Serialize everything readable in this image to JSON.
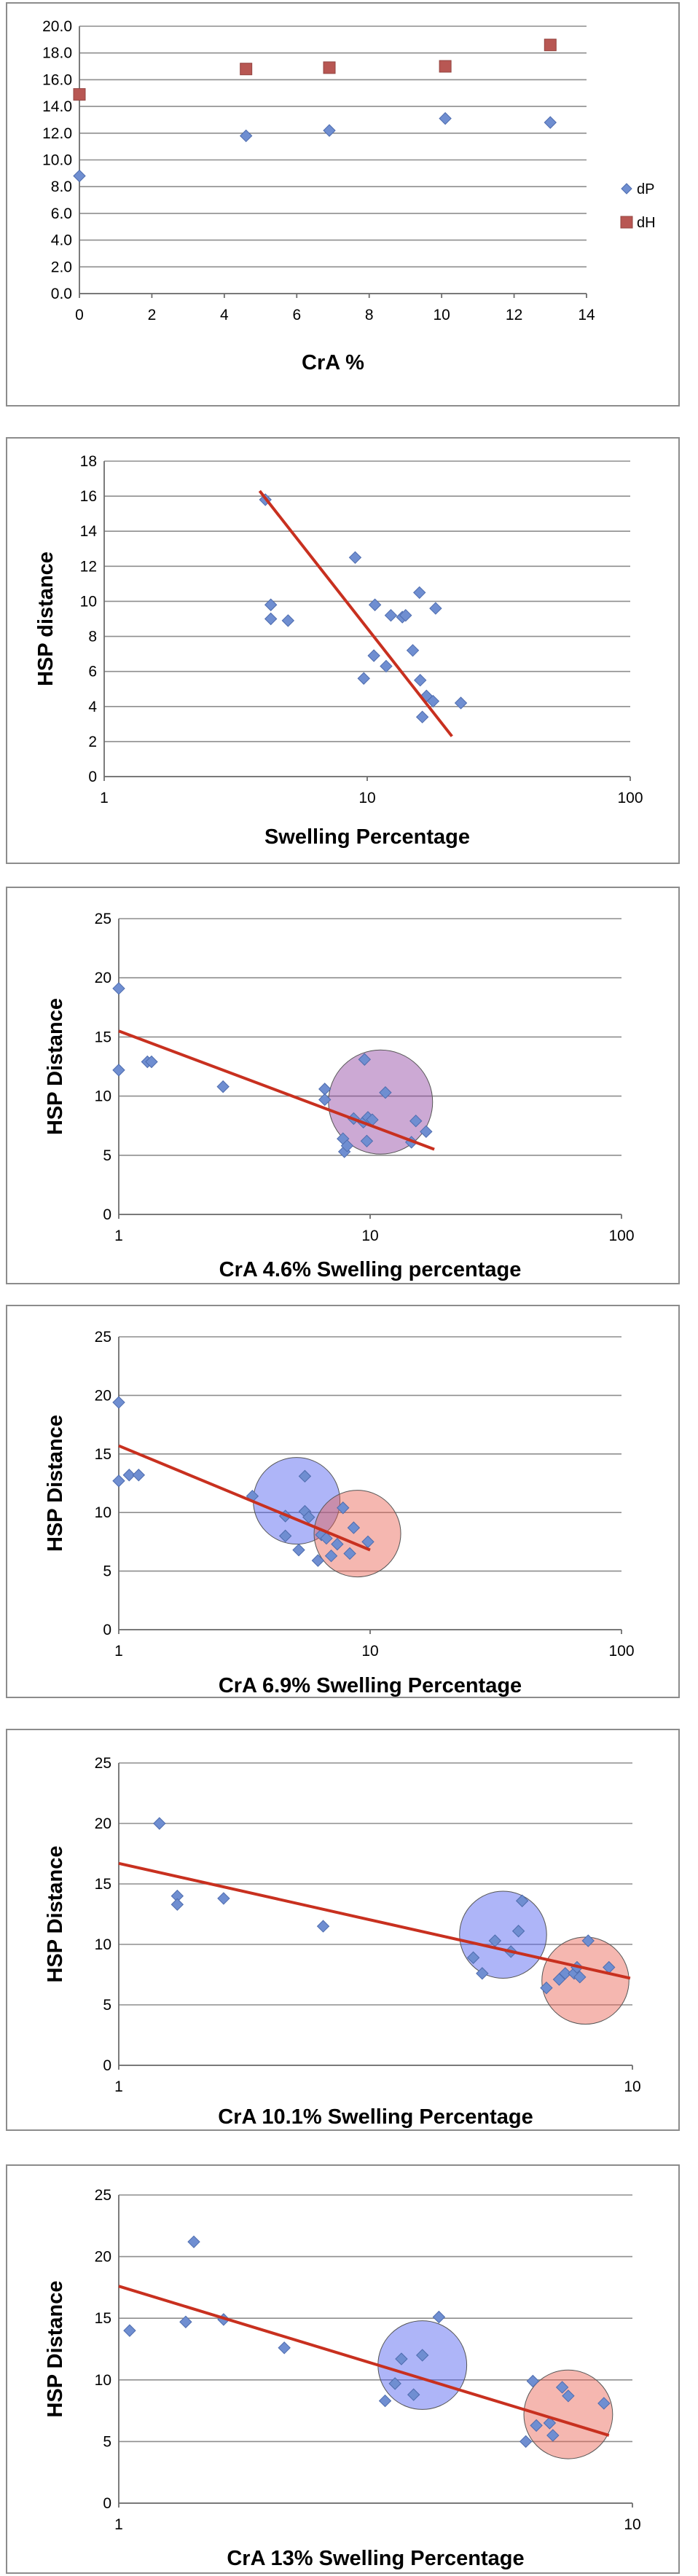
{
  "chart_data": [
    {
      "type": "scatter",
      "xlabel": "CrA %",
      "ylabel": "",
      "xlim": [
        0,
        14
      ],
      "ylim": [
        0,
        20
      ],
      "x_ticks": [
        "0",
        "2",
        "4",
        "6",
        "8",
        "10",
        "12",
        "14"
      ],
      "y_ticks": [
        "0.0",
        "2.0",
        "4.0",
        "6.0",
        "8.0",
        "10.0",
        "12.0",
        "14.0",
        "16.0",
        "18.0",
        "20.0"
      ],
      "x_scale": "linear",
      "grid": true,
      "legend": "right",
      "series": [
        {
          "name": "dP",
          "marker": "diamond",
          "color": "#6f8ed1",
          "points": [
            [
              0,
              8.8
            ],
            [
              4.6,
              11.8
            ],
            [
              6.9,
              12.2
            ],
            [
              10.1,
              13.1
            ],
            [
              13,
              12.8
            ]
          ]
        },
        {
          "name": "dH",
          "marker": "square",
          "color": "#b85753",
          "points": [
            [
              0,
              14.9
            ],
            [
              4.6,
              16.8
            ],
            [
              6.9,
              16.9
            ],
            [
              10.1,
              17.0
            ],
            [
              13,
              18.6
            ]
          ]
        }
      ]
    },
    {
      "type": "scatter",
      "xlabel": "Swelling Percentage",
      "ylabel": "HSP distance",
      "xlim": [
        1,
        100
      ],
      "ylim": [
        0,
        18
      ],
      "x_ticks": [
        "1",
        "10",
        "100"
      ],
      "y_ticks": [
        "0",
        "2",
        "4",
        "6",
        "8",
        "10",
        "12",
        "14",
        "16",
        "18"
      ],
      "x_scale": "log",
      "grid": true,
      "series": [
        {
          "name": "",
          "marker": "diamond",
          "color": "#6f8ed1",
          "points": [
            [
              4.1,
              15.8
            ],
            [
              4.3,
              9.8
            ],
            [
              4.3,
              9.0
            ],
            [
              5.0,
              8.9
            ],
            [
              9.0,
              12.5
            ],
            [
              9.7,
              5.6
            ],
            [
              10.6,
              6.9
            ],
            [
              10.7,
              9.8
            ],
            [
              11.8,
              6.3
            ],
            [
              12.3,
              9.2
            ],
            [
              13.6,
              9.1
            ],
            [
              14.0,
              9.2
            ],
            [
              14.9,
              7.2
            ],
            [
              15.8,
              10.5
            ],
            [
              15.9,
              5.5
            ],
            [
              16.2,
              3.4
            ],
            [
              16.8,
              4.6
            ],
            [
              17.8,
              4.3
            ],
            [
              18.2,
              9.6
            ],
            [
              22.7,
              4.2
            ]
          ]
        }
      ],
      "trendline": [
        [
          3.9,
          16.3
        ],
        [
          21.0,
          2.3
        ]
      ]
    },
    {
      "type": "scatter",
      "xlabel": "CrA 4.6% Swelling percentage",
      "ylabel": "HSP Distance",
      "xlim": [
        1,
        100
      ],
      "ylim": [
        0,
        25
      ],
      "x_ticks": [
        "1",
        "10",
        "100"
      ],
      "y_ticks": [
        "0",
        "5",
        "10",
        "15",
        "20",
        "25"
      ],
      "x_scale": "log",
      "grid": true,
      "series": [
        {
          "name": "",
          "marker": "diamond",
          "color": "#6f8ed1",
          "points": [
            [
              1.0,
              19.1
            ],
            [
              1.0,
              12.2
            ],
            [
              1.3,
              12.9
            ],
            [
              1.35,
              12.9
            ],
            [
              2.6,
              10.8
            ],
            [
              6.6,
              10.6
            ],
            [
              6.6,
              9.7
            ],
            [
              7.8,
              6.4
            ],
            [
              7.9,
              5.3
            ],
            [
              8.1,
              5.8
            ],
            [
              8.6,
              8.1
            ],
            [
              9.4,
              7.8
            ],
            [
              9.5,
              13.1
            ],
            [
              9.7,
              6.2
            ],
            [
              9.8,
              8.2
            ],
            [
              10.2,
              8.0
            ],
            [
              11.5,
              10.3
            ],
            [
              14.6,
              6.1
            ],
            [
              15.2,
              7.9
            ],
            [
              16.7,
              7.0
            ]
          ]
        }
      ],
      "trendline": [
        [
          1.0,
          15.5
        ],
        [
          18.0,
          5.5
        ]
      ],
      "circles": [
        {
          "center": [
            11.0,
            9.5
          ],
          "radius": 4.4,
          "color": "#8e40a0"
        }
      ]
    },
    {
      "type": "scatter",
      "xlabel": "CrA 6.9% Swelling Percentage",
      "ylabel": "HSP Distance",
      "xlim": [
        1,
        100
      ],
      "ylim": [
        0,
        25
      ],
      "x_ticks": [
        "1",
        "10",
        "100"
      ],
      "y_ticks": [
        "0",
        "5",
        "10",
        "15",
        "20",
        "25"
      ],
      "x_scale": "log",
      "grid": true,
      "series": [
        {
          "name": "",
          "marker": "diamond",
          "color": "#6f8ed1",
          "points": [
            [
              1.0,
              19.4
            ],
            [
              1.0,
              12.7
            ],
            [
              1.1,
              13.2
            ],
            [
              1.2,
              13.2
            ],
            [
              3.4,
              11.4
            ],
            [
              4.6,
              9.7
            ],
            [
              4.6,
              8.0
            ],
            [
              5.2,
              6.8
            ],
            [
              5.5,
              13.1
            ],
            [
              5.5,
              10.1
            ],
            [
              5.7,
              9.6
            ],
            [
              6.2,
              5.9
            ],
            [
              6.4,
              8.1
            ],
            [
              6.7,
              7.8
            ],
            [
              7.0,
              6.3
            ],
            [
              7.4,
              7.3
            ],
            [
              7.8,
              10.4
            ],
            [
              8.3,
              6.5
            ],
            [
              8.6,
              8.7
            ],
            [
              9.8,
              7.5
            ]
          ]
        }
      ],
      "trendline": [
        [
          1.0,
          15.7
        ],
        [
          10.0,
          6.8
        ]
      ],
      "circles": [
        {
          "center": [
            5.1,
            11.0
          ],
          "radius": 3.7,
          "color": "#4c5bf0"
        },
        {
          "center": [
            8.9,
            8.2
          ],
          "radius": 3.7,
          "color": "#e86050"
        }
      ]
    },
    {
      "type": "scatter",
      "xlabel": "CrA 10.1% Swelling Percentage",
      "ylabel": "HSP Distance",
      "xlim": [
        1,
        10
      ],
      "ylim": [
        0,
        25
      ],
      "x_ticks": [
        "1",
        "10"
      ],
      "y_ticks": [
        "0",
        "5",
        "10",
        "15",
        "20",
        "25"
      ],
      "x_scale": "log",
      "grid": true,
      "series": [
        {
          "name": "",
          "marker": "diamond",
          "color": "#6f8ed1",
          "points": [
            [
              1.2,
              20.0
            ],
            [
              1.3,
              14.0
            ],
            [
              1.3,
              13.3
            ],
            [
              1.6,
              13.8
            ],
            [
              2.5,
              11.5
            ],
            [
              4.9,
              8.9
            ],
            [
              5.1,
              7.6
            ],
            [
              5.4,
              10.3
            ],
            [
              5.8,
              9.4
            ],
            [
              6.0,
              11.1
            ],
            [
              6.1,
              13.6
            ],
            [
              6.8,
              6.4
            ],
            [
              7.2,
              7.1
            ],
            [
              7.4,
              7.6
            ],
            [
              7.7,
              7.6
            ],
            [
              7.8,
              8.1
            ],
            [
              7.9,
              7.3
            ],
            [
              8.2,
              10.3
            ],
            [
              9.0,
              8.1
            ]
          ]
        }
      ],
      "trendline": [
        [
          1.0,
          16.7
        ],
        [
          9.9,
          7.2
        ]
      ],
      "circles": [
        {
          "center": [
            5.6,
            10.8
          ],
          "radius": 3.6,
          "color": "#4c5bf0"
        },
        {
          "center": [
            8.1,
            7.0
          ],
          "radius": 3.6,
          "color": "#e86050"
        }
      ]
    },
    {
      "type": "scatter",
      "xlabel": "CrA 13% Swelling Percentage",
      "ylabel": "HSP Distance",
      "xlim": [
        1,
        10
      ],
      "ylim": [
        0,
        25
      ],
      "x_ticks": [
        "1",
        "10"
      ],
      "y_ticks": [
        "0",
        "5",
        "10",
        "15",
        "20",
        "25"
      ],
      "x_scale": "log",
      "grid": true,
      "series": [
        {
          "name": "",
          "marker": "diamond",
          "color": "#6f8ed1",
          "points": [
            [
              1.05,
              14.0
            ],
            [
              1.35,
              14.7
            ],
            [
              1.4,
              21.2
            ],
            [
              1.6,
              14.9
            ],
            [
              2.1,
              12.6
            ],
            [
              3.3,
              8.3
            ],
            [
              3.45,
              9.7
            ],
            [
              3.55,
              11.7
            ],
            [
              3.75,
              8.8
            ],
            [
              3.9,
              12.0
            ],
            [
              4.2,
              15.1
            ],
            [
              6.2,
              5.0
            ],
            [
              6.4,
              9.9
            ],
            [
              6.5,
              6.3
            ],
            [
              6.9,
              6.5
            ],
            [
              7.0,
              5.5
            ],
            [
              7.3,
              9.4
            ],
            [
              7.5,
              8.7
            ],
            [
              8.8,
              8.1
            ]
          ]
        }
      ],
      "trendline": [
        [
          1.0,
          17.6
        ],
        [
          9.0,
          5.5
        ]
      ],
      "circles": [
        {
          "center": [
            3.9,
            11.2
          ],
          "radius": 3.6,
          "color": "#4c5bf0"
        },
        {
          "center": [
            7.5,
            7.2
          ],
          "radius": 3.6,
          "color": "#e86050"
        }
      ]
    }
  ]
}
